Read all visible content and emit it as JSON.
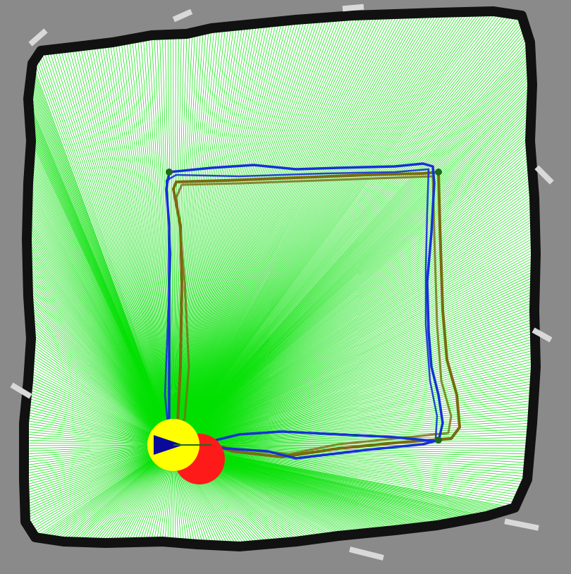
{
  "view": {
    "type": "occupancy-grid-map",
    "colors": {
      "unknown": "#8a8a8a",
      "free": "#ffffff",
      "wall": "#111111",
      "wall_noise": "#d9d9d9",
      "laser_rays": "#00e000",
      "path_blue": "#1530d8",
      "path_olive": "#7a6a10",
      "waypoint": "#1f6a1f",
      "goal_marker": "#ff1a1a",
      "robot_marker": "#ffff00",
      "robot_heading": "#0a0a9a"
    }
  },
  "waypoints": [
    {
      "id": "wp1"
    },
    {
      "id": "wp2"
    },
    {
      "id": "wp3"
    },
    {
      "id": "wp4"
    }
  ],
  "paths": [
    {
      "name": "planned-path",
      "color": "#1530d8"
    },
    {
      "name": "executed-path",
      "color": "#7a6a10"
    }
  ],
  "robot": {
    "icon": "triangle-heading-icon"
  },
  "goal": {
    "icon": "red-disc-icon"
  }
}
